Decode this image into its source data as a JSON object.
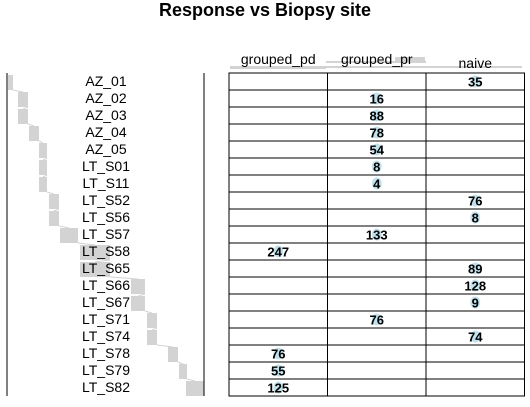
{
  "chart_data": {
    "type": "heatmap",
    "title": "Response vs Biopsy site",
    "columns": [
      "grouped_pd",
      "grouped_pr",
      "naive"
    ],
    "rows": [
      "AZ_01",
      "AZ_02",
      "AZ_03",
      "AZ_04",
      "AZ_05",
      "LT_S01",
      "LT_S11",
      "LT_S52",
      "LT_S56",
      "LT_S57",
      "LT_S58",
      "LT_S65",
      "LT_S66",
      "LT_S67",
      "LT_S71",
      "LT_S74",
      "LT_S78",
      "LT_S79",
      "LT_S82"
    ],
    "values": [
      [
        null,
        null,
        35
      ],
      [
        null,
        16,
        null
      ],
      [
        null,
        88,
        null
      ],
      [
        null,
        78,
        null
      ],
      [
        null,
        54,
        null
      ],
      [
        null,
        8,
        null
      ],
      [
        null,
        4,
        null
      ],
      [
        null,
        null,
        76
      ],
      [
        null,
        null,
        8
      ],
      [
        null,
        133,
        null
      ],
      [
        247,
        null,
        null
      ],
      [
        null,
        null,
        89
      ],
      [
        null,
        null,
        128
      ],
      [
        null,
        null,
        9
      ],
      [
        null,
        76,
        null
      ],
      [
        null,
        null,
        74
      ],
      [
        76,
        null,
        null
      ],
      [
        55,
        null,
        null
      ],
      [
        125,
        null,
        null
      ]
    ],
    "colors": {
      "background": "#ffffff",
      "cell_border": "#000000",
      "dendrogram": "#d3d3d3",
      "value_glow": "#a6d6e6"
    }
  }
}
